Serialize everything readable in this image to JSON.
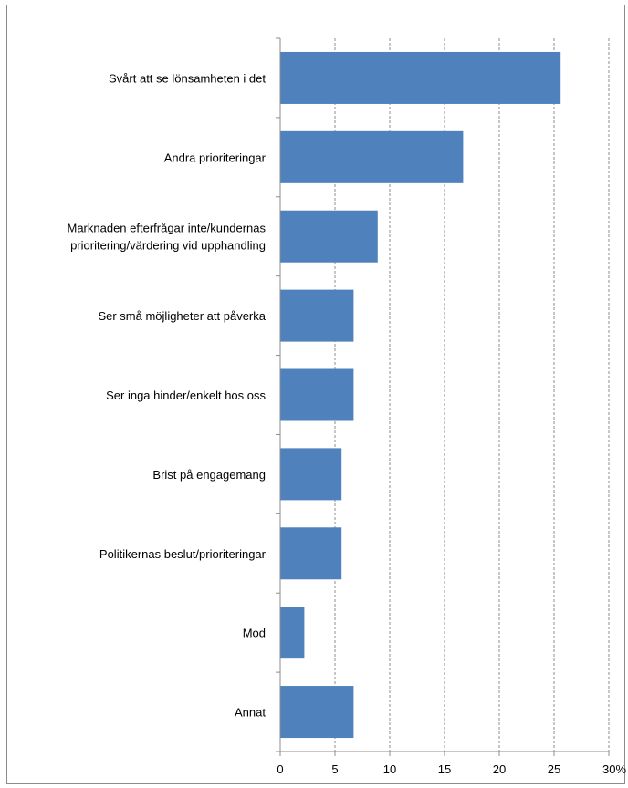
{
  "chart_data": {
    "type": "bar",
    "orientation": "horizontal",
    "categories": [
      [
        "Svårt att se lönsamheten i det"
      ],
      [
        "Andra prioriteringar"
      ],
      [
        "Marknaden efterfrågar inte/kundernas",
        "prioritering/värdering vid upphandling"
      ],
      [
        "Ser små möjligheter att påverka"
      ],
      [
        "Ser inga hinder/enkelt hos oss"
      ],
      [
        "Brist på engagemang"
      ],
      [
        "Politikernas beslut/prioriteringar"
      ],
      [
        "Mod"
      ],
      [
        "Annat"
      ]
    ],
    "values": [
      25.6,
      16.7,
      8.9,
      6.7,
      6.7,
      5.6,
      5.6,
      2.2,
      6.7
    ],
    "xlim": [
      0,
      30
    ],
    "xticks": [
      0,
      5,
      10,
      15,
      20,
      25
    ],
    "last_tick_label": "30%",
    "grid": "vertical-dashed",
    "legend": "none",
    "colors": {
      "bar": "#4f81bd",
      "grid": "#8c8c8c",
      "axis": "#8c8c8c",
      "frame": "#8c8c8c"
    }
  }
}
